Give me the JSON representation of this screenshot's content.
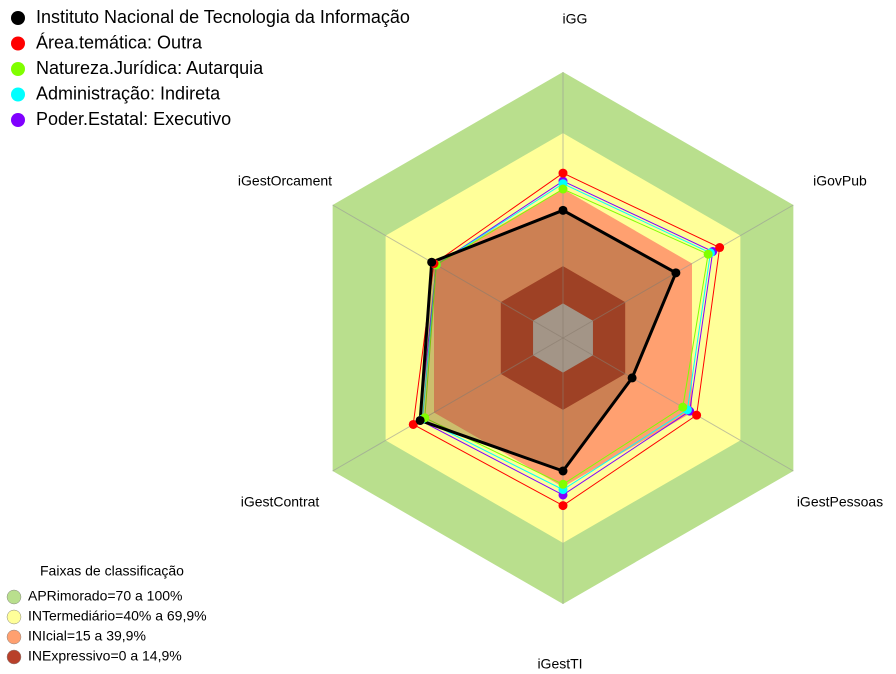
{
  "chart_data": {
    "type": "radar",
    "categories": [
      "iGG",
      "iGovPub",
      "iGestPessoas",
      "iGestTI",
      "iGestContrat",
      "iGestOrcament"
    ],
    "rlim": [
      0,
      100
    ],
    "series": [
      {
        "name": "Instituto Nacional de Tecnologia da Informação",
        "color": "#000000",
        "values": [
          48,
          49,
          30,
          50,
          62,
          57
        ]
      },
      {
        "name": "Área.temática: Outra",
        "color": "#ff0000",
        "values": [
          62,
          68,
          58,
          63,
          65,
          56
        ]
      },
      {
        "name": "Natureza.Jurídica: Autarquia",
        "color": "#80ff00",
        "values": [
          56,
          63,
          52,
          55,
          60,
          55
        ]
      },
      {
        "name": "Administração: Indireta",
        "color": "#00ffff",
        "values": [
          58,
          64,
          54,
          57,
          61,
          55
        ]
      },
      {
        "name": "Poder.Estatal: Executivo",
        "color": "#8000ff",
        "values": [
          59,
          65,
          55,
          59,
          62,
          55
        ]
      }
    ],
    "bands_title": "Faixas de classificação",
    "bands": [
      {
        "label": "APRimorado=70 a 100%",
        "color": "#b9df8d",
        "from": 77,
        "to": 100
      },
      {
        "label": "INTermediário=40% a 69,9%",
        "color": "#ffff99",
        "from": 56,
        "to": 77
      },
      {
        "label": "INIcial=15 a 39,9%",
        "color": "#ffa070",
        "from": 27,
        "to": 56
      },
      {
        "label": "INExpressivo=0 a 14,9%",
        "color": "#b8402a",
        "from": 13,
        "to": 27
      }
    ]
  }
}
